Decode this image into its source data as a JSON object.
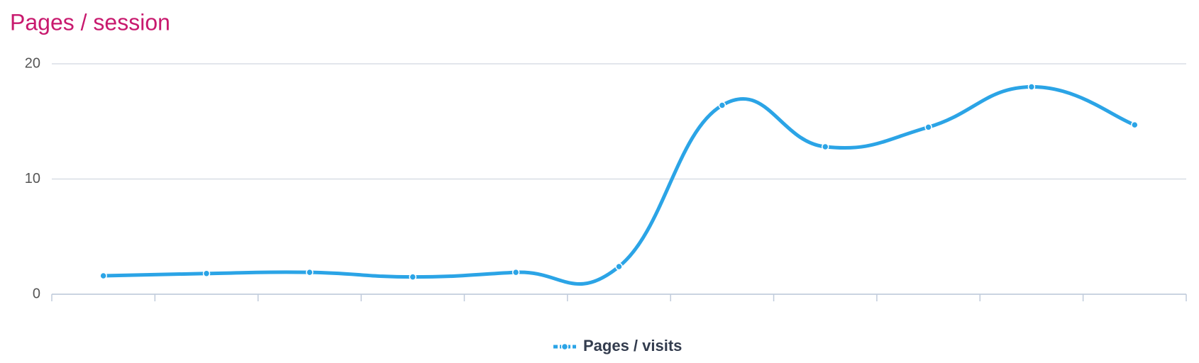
{
  "chart_data": {
    "type": "line",
    "title": "Pages / session",
    "categories": [
      null,
      null,
      null,
      null,
      null,
      null,
      null,
      null,
      null,
      null,
      null
    ],
    "series": [
      {
        "name": "Pages / visits",
        "color": "#2ba4e6",
        "values": [
          1.6,
          1.8,
          1.9,
          1.5,
          1.9,
          2.4,
          16.4,
          12.8,
          14.5,
          18,
          14.7
        ]
      }
    ],
    "ylim": [
      0,
      20
    ],
    "yticks": [
      0,
      10,
      20
    ],
    "grid": true,
    "legend": "bottom"
  }
}
